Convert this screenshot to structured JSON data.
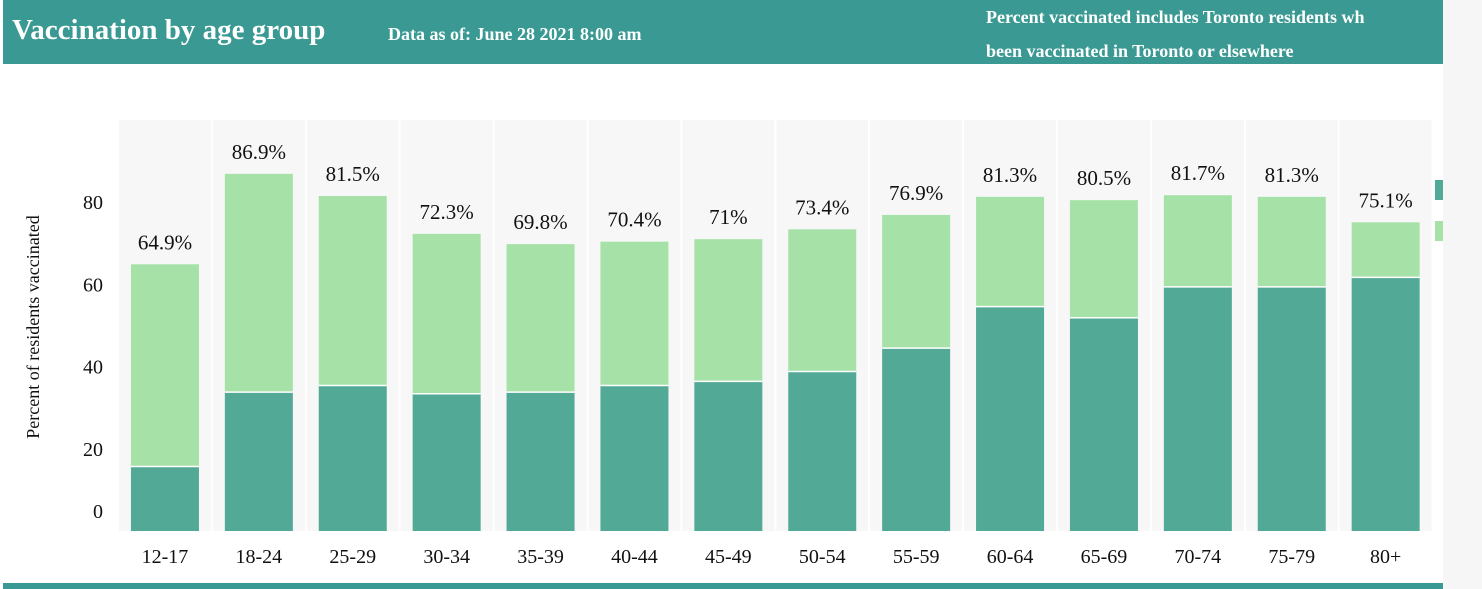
{
  "header": {
    "title": "Vaccination by age group",
    "date_text": "Data as of: June 28 2021 8:00 am",
    "note_line1": "Percent vaccinated includes Toronto residents wh",
    "note_line2": "been vaccinated in Toronto or elsewhere"
  },
  "colors": {
    "header_bg": "#3a9a93",
    "fully_vaccinated": "#52a996",
    "partially_vaccinated": "#a6e2a7",
    "column_shade": "#f7f7f7"
  },
  "chart_data": {
    "type": "bar",
    "stacked": true,
    "ylabel": "Percent of residents vaccinated",
    "yticks": [
      0,
      20,
      40,
      60,
      80
    ],
    "ylim": [
      0,
      100
    ],
    "grid": false,
    "categories": [
      "12-17",
      "18-24",
      "25-29",
      "30-34",
      "35-39",
      "40-44",
      "45-49",
      "50-54",
      "55-59",
      "60-64",
      "65-69",
      "70-74",
      "75-79",
      "80+"
    ],
    "series": [
      {
        "values": [
          15.7,
          33.8,
          35.4,
          33.4,
          33.8,
          35.4,
          36.4,
          38.8,
          44.5,
          54.6,
          51.9,
          59.4,
          59.4,
          61.7
        ]
      },
      {
        "values": [
          49.2,
          53.1,
          46.1,
          38.9,
          36.0,
          35.0,
          34.6,
          34.6,
          32.4,
          26.7,
          28.6,
          22.3,
          21.9,
          13.4
        ]
      }
    ],
    "totals": [
      64.9,
      86.9,
      81.5,
      72.3,
      69.8,
      70.4,
      71,
      73.4,
      76.9,
      81.3,
      80.5,
      81.7,
      81.3,
      75.1
    ],
    "bar_labels": [
      "64.9%",
      "86.9%",
      "81.5%",
      "72.3%",
      "69.8%",
      "70.4%",
      "71%",
      "73.4%",
      "76.9%",
      "81.3%",
      "80.5%",
      "81.7%",
      "81.3%",
      "75.1%"
    ]
  }
}
